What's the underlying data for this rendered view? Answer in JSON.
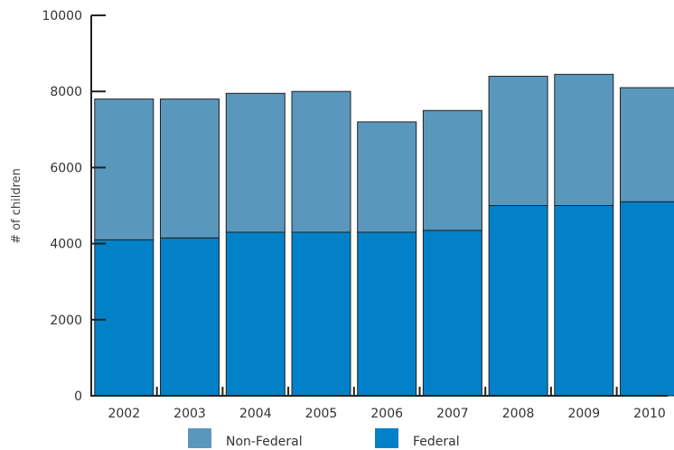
{
  "chart_data": {
    "type": "bar",
    "stacked": true,
    "categories": [
      "2002",
      "2003",
      "2004",
      "2005",
      "2006",
      "2007",
      "2008",
      "2009",
      "2010"
    ],
    "series": [
      {
        "name": "Federal",
        "values": [
          4100,
          4150,
          4300,
          4300,
          4300,
          4350,
          5000,
          5000,
          5100
        ],
        "color": "#0381c8"
      },
      {
        "name": "Non-Federal",
        "values": [
          3700,
          3650,
          3650,
          3700,
          2900,
          3150,
          3400,
          3450,
          3000
        ],
        "color": "#5a97bc"
      }
    ],
    "ylabel": "# of children",
    "ylim": [
      0,
      10000
    ],
    "yticks": [
      "0",
      "2000",
      "4000",
      "6000",
      "8000",
      "10000"
    ],
    "grid": false,
    "legend_position": "bottom"
  }
}
